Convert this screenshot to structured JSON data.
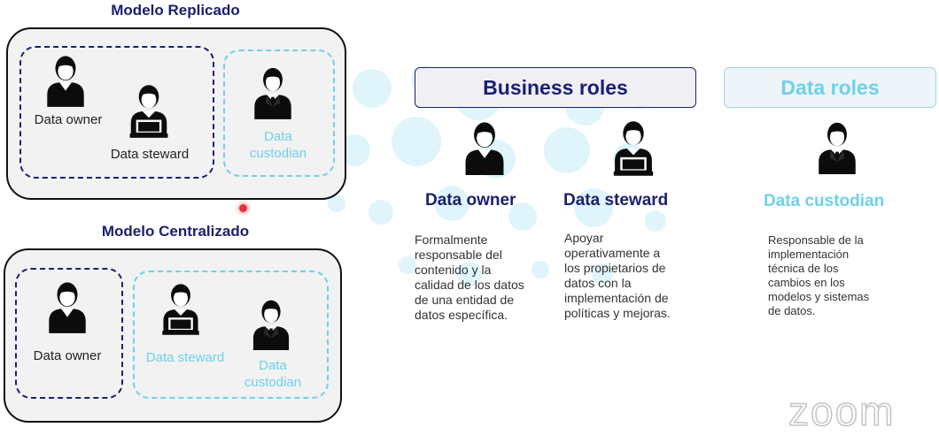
{
  "replicado": {
    "title": "Modelo Replicado",
    "owner_label": "Data owner",
    "steward_label": "Data steward",
    "custodian_label": "Data\ncustodian"
  },
  "centralizado": {
    "title": "Modelo Centralizado",
    "owner_label": "Data owner",
    "steward_label": "Data steward",
    "custodian_label": "Data\ncustodian"
  },
  "business_roles": {
    "header": "Business roles",
    "owner": {
      "name": "Data owner",
      "description": "Formalmente\nresponsable del\ncontenido y la\ncalidad de los datos\nde una entidad de\ndatos específica."
    },
    "steward": {
      "name": "Data steward",
      "description": "Apoyar\noperativamente a\nlos propietarios de\ndatos con la\nimplementación de\npolíticas y mejoras."
    }
  },
  "data_roles": {
    "header": "Data roles",
    "custodian": {
      "name": "Data custodian",
      "description": "Responsable de la\nimplementación\ntécnica de los\ncambios en los\nmodelos y sistemas\nde datos."
    }
  },
  "watermark": "zoom",
  "colors": {
    "navy": "#1b2070",
    "cyan": "#6fd0ea",
    "recording_dot": "#e8333a"
  },
  "icons": [
    "person-owner-icon",
    "person-steward-laptop-icon",
    "person-custodian-suit-icon"
  ]
}
